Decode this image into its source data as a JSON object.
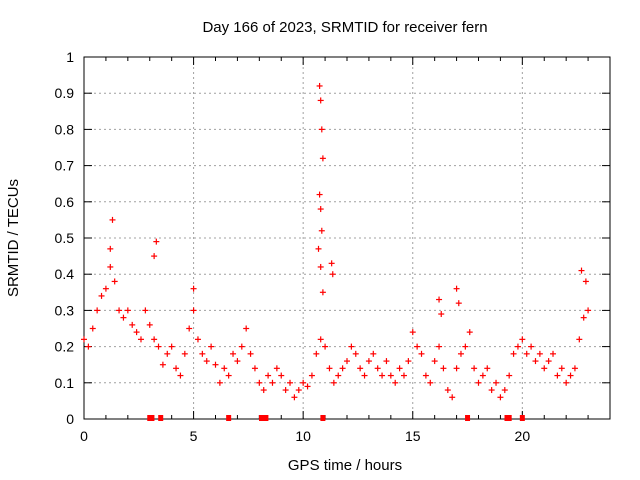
{
  "chart_data": {
    "type": "scatter",
    "title": "Day 166 of 2023, SRMTID for receiver fern",
    "xlabel": "GPS time / hours",
    "ylabel": "SRMTID / TECUs",
    "xlim": [
      0,
      24
    ],
    "ylim": [
      0,
      1
    ],
    "x_ticks": [
      0,
      5,
      10,
      15,
      20
    ],
    "x_tick_labels": [
      "0",
      "5",
      "10",
      "15",
      "20"
    ],
    "y_ticks": [
      0,
      0.1,
      0.2,
      0.3,
      0.4,
      0.5,
      0.6,
      0.7,
      0.8,
      0.9,
      1
    ],
    "y_tick_labels": [
      "0",
      "0.1",
      "0.2",
      "0.3",
      "0.4",
      "0.5",
      "0.6",
      "0.7",
      "0.8",
      "0.9",
      "1"
    ],
    "grid": true,
    "marker": "plus",
    "color": "#ff0000",
    "series": [
      {
        "name": "SRMTID",
        "x": [
          0.0,
          0.2,
          0.4,
          0.6,
          0.8,
          1.0,
          1.2,
          1.4,
          1.6,
          1.8,
          2.0,
          2.2,
          2.4,
          2.6,
          2.8,
          3.0,
          3.2,
          3.4,
          3.6,
          3.8,
          4.0,
          4.2,
          4.4,
          4.6,
          4.8,
          5.0,
          5.2,
          5.4,
          5.6,
          5.8,
          6.0,
          6.2,
          6.4,
          6.6,
          6.8,
          7.0,
          7.2,
          7.4,
          7.6,
          7.8,
          8.0,
          8.2,
          8.4,
          8.6,
          8.8,
          9.0,
          9.2,
          9.4,
          9.6,
          9.8,
          10.0,
          10.2,
          10.4,
          10.6,
          10.8,
          11.0,
          11.2,
          11.4,
          11.6,
          11.8,
          12.0,
          12.2,
          12.4,
          12.6,
          12.8,
          13.0,
          13.2,
          13.4,
          13.6,
          13.8,
          14.0,
          14.2,
          14.4,
          14.6,
          14.8,
          15.0,
          15.2,
          15.4,
          15.6,
          15.8,
          16.0,
          16.2,
          16.4,
          16.6,
          16.8,
          17.0,
          17.2,
          17.4,
          17.6,
          17.8,
          18.0,
          18.2,
          18.4,
          18.6,
          18.8,
          19.0,
          19.2,
          19.4,
          19.6,
          19.8,
          20.0,
          20.2,
          20.4,
          20.6,
          20.8,
          21.0,
          21.2,
          21.4,
          21.6,
          21.8,
          22.0,
          22.2,
          22.4,
          22.6,
          22.8,
          23.0,
          1.3,
          1.2,
          3.3,
          3.2,
          5.0,
          10.75,
          10.8,
          10.85,
          10.9,
          10.75,
          10.8,
          10.85,
          10.7,
          10.8,
          10.9,
          11.3,
          11.35,
          16.2,
          16.3,
          17.0,
          17.1,
          22.7,
          22.9
        ],
        "y": [
          0.22,
          0.2,
          0.25,
          0.3,
          0.34,
          0.36,
          0.42,
          0.38,
          0.3,
          0.28,
          0.3,
          0.26,
          0.24,
          0.22,
          0.3,
          0.26,
          0.22,
          0.2,
          0.15,
          0.18,
          0.2,
          0.14,
          0.12,
          0.18,
          0.25,
          0.3,
          0.22,
          0.18,
          0.16,
          0.2,
          0.15,
          0.1,
          0.14,
          0.12,
          0.18,
          0.16,
          0.2,
          0.25,
          0.18,
          0.14,
          0.1,
          0.08,
          0.12,
          0.1,
          0.14,
          0.12,
          0.08,
          0.1,
          0.06,
          0.08,
          0.1,
          0.09,
          0.12,
          0.18,
          0.22,
          0.2,
          0.14,
          0.1,
          0.12,
          0.14,
          0.16,
          0.2,
          0.18,
          0.14,
          0.12,
          0.16,
          0.18,
          0.14,
          0.12,
          0.16,
          0.12,
          0.1,
          0.14,
          0.12,
          0.16,
          0.24,
          0.2,
          0.18,
          0.12,
          0.1,
          0.16,
          0.2,
          0.14,
          0.08,
          0.06,
          0.14,
          0.18,
          0.2,
          0.24,
          0.14,
          0.1,
          0.12,
          0.14,
          0.08,
          0.1,
          0.06,
          0.08,
          0.12,
          0.18,
          0.2,
          0.22,
          0.18,
          0.2,
          0.16,
          0.18,
          0.14,
          0.16,
          0.18,
          0.12,
          0.14,
          0.1,
          0.12,
          0.14,
          0.22,
          0.28,
          0.3,
          0.55,
          0.47,
          0.49,
          0.45,
          0.36,
          0.92,
          0.88,
          0.8,
          0.72,
          0.62,
          0.58,
          0.52,
          0.47,
          0.42,
          0.35,
          0.43,
          0.4,
          0.33,
          0.29,
          0.36,
          0.32,
          0.41,
          0.38
        ]
      }
    ],
    "bottom_markers_x": [
      3.0,
      3.1,
      3.5,
      6.6,
      8.1,
      8.3,
      10.9,
      17.5,
      19.3,
      19.4,
      20.0
    ],
    "bottom_markers_type": "data gap markers on x-axis"
  }
}
